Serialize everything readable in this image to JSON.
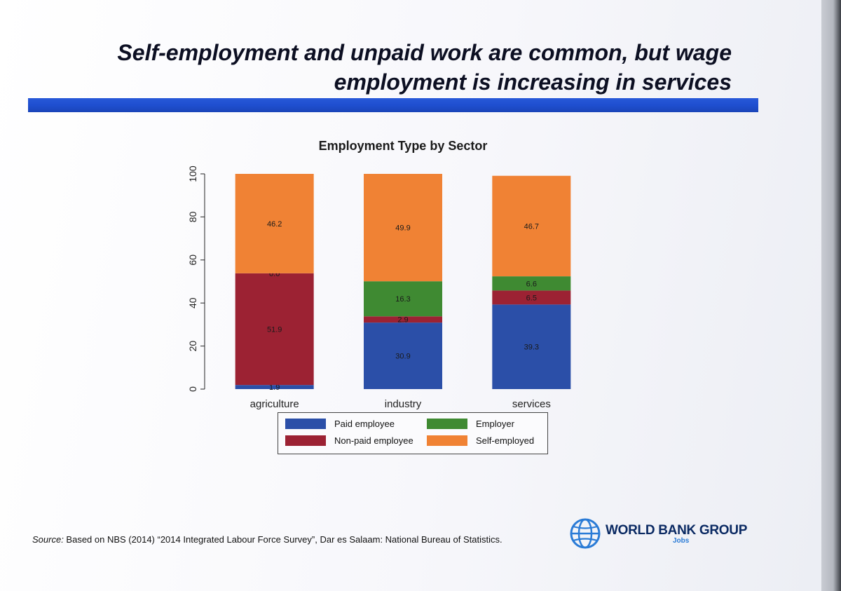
{
  "slide": {
    "headline_line1": "Self-employment and unpaid work are common, but wage",
    "headline_line2": "employment is increasing in services",
    "source_label": "Source:",
    "source_text": " Based on NBS (2014) “2014 Integrated Labour Force Survey”, Dar es Salaam: National Bureau of Statistics.",
    "logo_text": "WORLD BANK GROUP",
    "logo_subtext": "Jobs",
    "logo_icon": "globe-icon",
    "accent_color": "#1f4fd0"
  },
  "chart_data": {
    "type": "bar",
    "stacked": true,
    "title": "Employment Type by Sector",
    "xlabel": "",
    "ylabel": "",
    "ylim": [
      0,
      100
    ],
    "yticks": [
      0,
      20,
      40,
      60,
      80,
      100
    ],
    "categories": [
      "agriculture",
      "industry",
      "services"
    ],
    "series": [
      {
        "name": "Paid employee",
        "color": "#2b4fa8",
        "values": [
          1.9,
          30.9,
          39.3
        ],
        "labels": [
          "1.9",
          "30.9",
          "39.3"
        ]
      },
      {
        "name": "Non-paid employee",
        "color": "#9c2233",
        "values": [
          51.9,
          2.9,
          6.5
        ],
        "labels": [
          "51.9",
          "2.9",
          "6.5"
        ]
      },
      {
        "name": "Employer",
        "color": "#3f8a32",
        "values": [
          0.0,
          16.3,
          6.6
        ],
        "labels": [
          "0.0",
          "16.3",
          "6.6"
        ]
      },
      {
        "name": "Self-employed",
        "color": "#f08234",
        "values": [
          46.2,
          49.9,
          46.7
        ],
        "labels": [
          "46.2",
          "49.9",
          "46.7"
        ]
      }
    ],
    "legend_position": "bottom",
    "grid": false
  }
}
